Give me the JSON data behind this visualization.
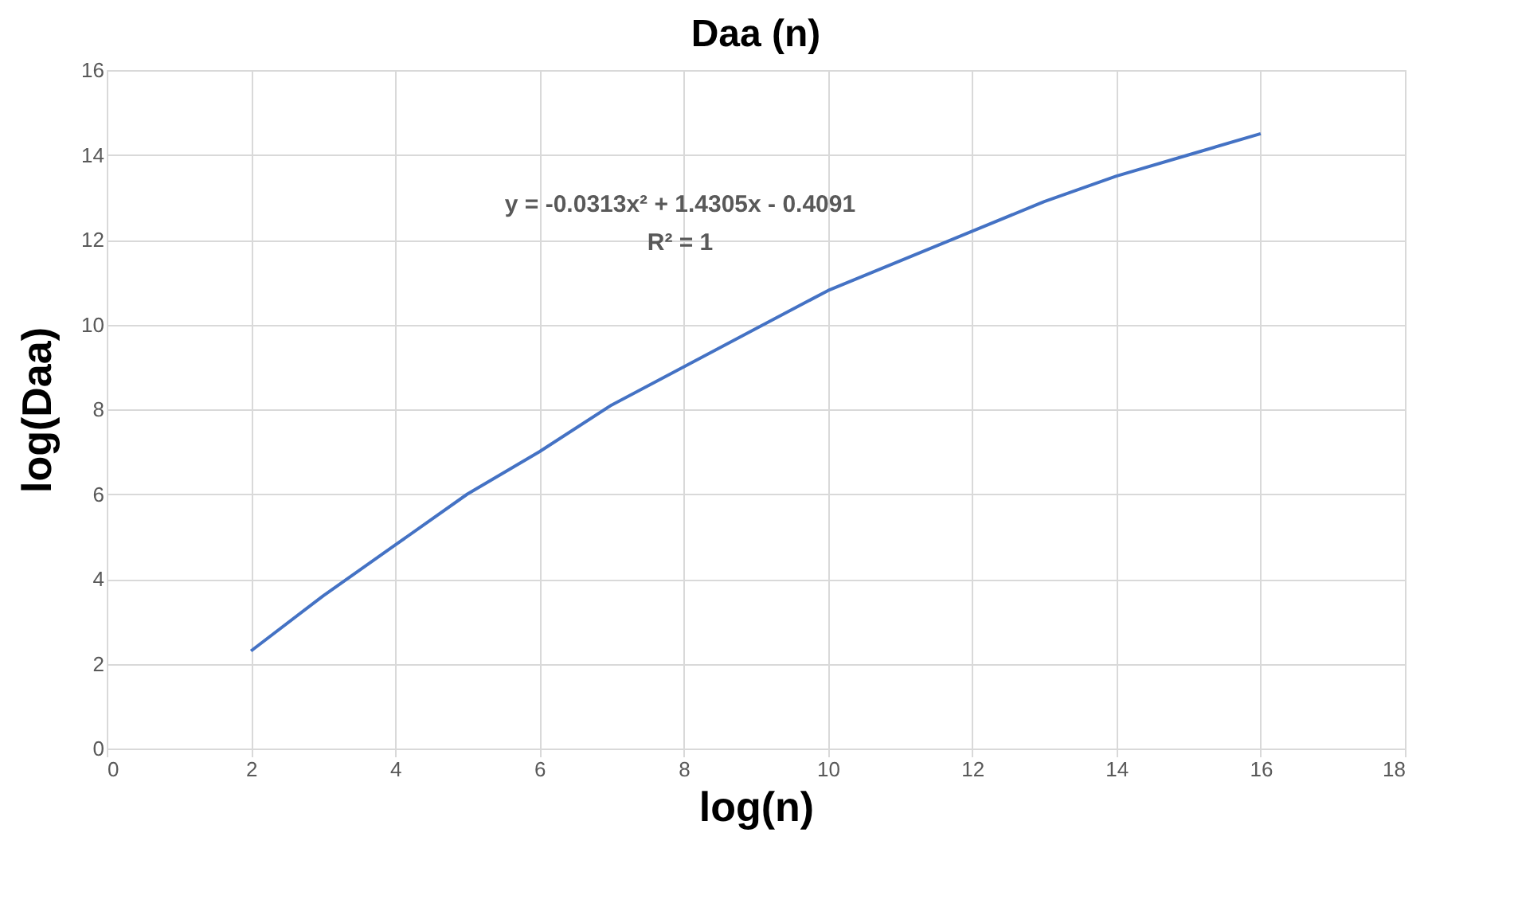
{
  "chart_data": {
    "type": "line",
    "title": "Daa (n)",
    "xlabel": "log(n)",
    "ylabel": "log(Daa)",
    "x": [
      2,
      3,
      4,
      5,
      6,
      7,
      8,
      9,
      10,
      11,
      12,
      13,
      14,
      15,
      16
    ],
    "series": [
      {
        "color": "#4472c4",
        "values": [
          2.3,
          3.6,
          4.8,
          6.0,
          7.0,
          8.1,
          9.0,
          9.9,
          10.8,
          11.5,
          12.2,
          12.9,
          13.5,
          14.0,
          14.5
        ]
      }
    ],
    "xlim": [
      0,
      18
    ],
    "xticks": [
      0,
      2,
      4,
      6,
      8,
      10,
      12,
      14,
      16,
      18
    ],
    "ylim": [
      0,
      16
    ],
    "yticks": [
      0,
      2,
      4,
      6,
      8,
      10,
      12,
      14,
      16
    ],
    "grid": true,
    "marker": "none",
    "line_style": "solid",
    "annotations": [
      "y = -0.0313x² + 1.4305x - 0.4091",
      "R² = 1"
    ]
  }
}
